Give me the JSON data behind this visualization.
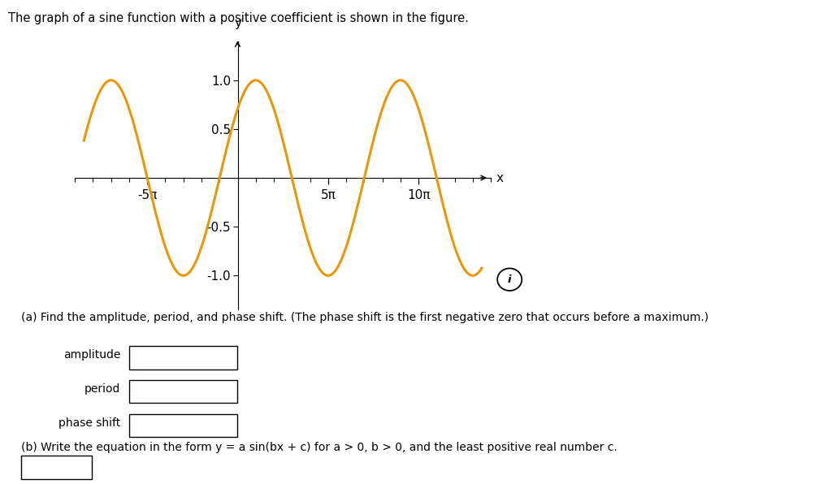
{
  "title_text": "The graph of a sine function with a positive coefficient is shown in the figure.",
  "curve_color": "#E8960A",
  "curve_linewidth": 2.2,
  "amplitude": 1.0,
  "b": 0.25,
  "c": 0.7853981633974483,
  "x_start_pi": -8.5,
  "x_end_pi": 13.5,
  "x_tick_pi": [
    -5,
    5,
    10
  ],
  "x_tick_labels": [
    "-5π",
    "5π",
    "10π"
  ],
  "y_ticks": [
    -1.0,
    -0.5,
    0.5,
    1.0
  ],
  "y_tick_labels": [
    "-1.0",
    "-0.5",
    "0.5",
    "1.0"
  ],
  "xlabel": "x",
  "ylabel": "y",
  "xlim_pi": [
    -8.5,
    13.5
  ],
  "ylim": [
    -1.35,
    1.4
  ],
  "background_color": "#ffffff",
  "axis_color": "#000000",
  "text_color": "#000000",
  "font_size": 11,
  "part_a_text": "(a) Find the amplitude, period, and phase shift. (The phase shift is the first negative zero that occurs before a maximum.)",
  "label_amplitude": "amplitude",
  "label_period": "period",
  "label_phase_shift": "phase shift",
  "part_b_text": "(b) Write the equation in the form y = a sin(bx + c) for a > 0, b > 0, and the least positive real number c."
}
